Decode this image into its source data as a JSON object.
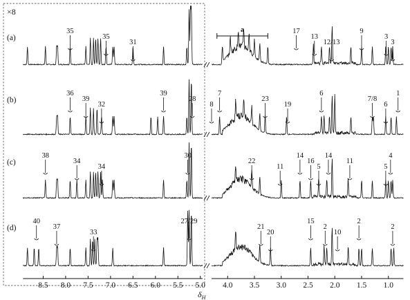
{
  "chart_data": {
    "type": "line",
    "xlabel": "δ",
    "xlabel_sub": "H",
    "zoom_label": "×8",
    "x_axis_reversed": true,
    "x_break": "between 5.0 and 4.3",
    "xticks": [
      "8.5",
      "8.0",
      "7.5",
      "7.0",
      "6.5",
      "6.0",
      "5.5",
      "5.0",
      "4.0",
      "3.5",
      "3.0",
      "2.5",
      "2.0",
      "1.5",
      "1.0"
    ],
    "xtick_values": [
      8.5,
      8.0,
      7.5,
      7.0,
      6.5,
      6.0,
      5.5,
      5.0,
      4.0,
      3.5,
      3.0,
      2.5,
      2.0,
      1.5,
      1.0
    ],
    "region_label": "a",
    "region_ppm": [
      4.2,
      3.25
    ],
    "spectra": [
      {
        "panel": "(a)",
        "peaks_ppm": [
          8.85,
          8.45,
          8.2,
          8.18,
          7.9,
          7.55,
          7.45,
          7.38,
          7.33,
          7.28,
          7.22,
          7.1,
          6.95,
          6.92,
          6.5,
          5.82,
          5.3,
          5.25,
          5.22,
          5.2,
          4.1,
          3.95,
          3.8,
          3.7,
          3.6,
          3.5,
          3.4,
          3.25,
          2.4,
          2.25,
          2.1,
          2.05,
          1.7,
          1.5,
          1.3,
          1.05,
          1.0,
          0.95,
          0.92
        ],
        "annotations": [
          {
            "text": "35",
            "ppm": 7.9
          },
          {
            "text": "35",
            "ppm": 7.1
          },
          {
            "text": "31",
            "ppm": 6.5
          },
          {
            "text": "17",
            "ppm": 2.72
          },
          {
            "text": "13",
            "ppm": 2.38
          },
          {
            "text": "12/13",
            "ppm": 2.06
          },
          {
            "text": "9",
            "ppm": 1.5
          },
          {
            "text": "3",
            "ppm": 1.04
          },
          {
            "text": "3",
            "ppm": 0.92
          }
        ]
      },
      {
        "panel": "(b)",
        "peaks_ppm": [
          8.2,
          8.18,
          7.9,
          7.55,
          7.45,
          7.38,
          7.3,
          7.2,
          6.95,
          6.92,
          6.1,
          5.95,
          5.82,
          5.3,
          5.25,
          5.2,
          4.15,
          3.85,
          3.7,
          3.55,
          3.4,
          3.3,
          2.9,
          2.25,
          2.2,
          2.1,
          2.05,
          2.0,
          1.7,
          1.3,
          1.28,
          1.05,
          0.95,
          0.85
        ],
        "annotations": [
          {
            "text": "36",
            "ppm": 7.9
          },
          {
            "text": "39",
            "ppm": 7.55
          },
          {
            "text": "32",
            "ppm": 7.2
          },
          {
            "text": "39",
            "ppm": 5.82
          },
          {
            "text": "28",
            "ppm": 5.18
          },
          {
            "text": "8",
            "ppm": 4.3
          },
          {
            "text": "7",
            "ppm": 4.15
          },
          {
            "text": "23",
            "ppm": 3.3
          },
          {
            "text": "19",
            "ppm": 2.88
          },
          {
            "text": "6",
            "ppm": 2.25
          },
          {
            "text": "7/8",
            "ppm": 1.3
          },
          {
            "text": "6",
            "ppm": 1.05
          },
          {
            "text": "1",
            "ppm": 0.82
          }
        ]
      },
      {
        "panel": "(c)",
        "peaks_ppm": [
          8.45,
          8.2,
          8.18,
          7.9,
          7.75,
          7.55,
          7.45,
          7.38,
          7.33,
          7.28,
          7.22,
          7.18,
          6.95,
          6.92,
          5.82,
          5.3,
          5.25,
          5.2,
          3.85,
          3.55,
          3.4,
          3.0,
          2.65,
          2.45,
          2.3,
          2.15,
          2.05,
          1.75,
          1.5,
          1.3,
          1.05,
          1.0,
          0.95,
          0.92
        ],
        "annotations": [
          {
            "text": "38",
            "ppm": 8.45
          },
          {
            "text": "34",
            "ppm": 7.75
          },
          {
            "text": "34",
            "ppm": 7.2
          },
          {
            "text": "30",
            "ppm": 5.28
          },
          {
            "text": "22",
            "ppm": 3.55
          },
          {
            "text": "11",
            "ppm": 3.02
          },
          {
            "text": "14",
            "ppm": 2.65
          },
          {
            "text": "16",
            "ppm": 2.45
          },
          {
            "text": "5",
            "ppm": 2.3
          },
          {
            "text": "14",
            "ppm": 2.12
          },
          {
            "text": "11",
            "ppm": 1.72
          },
          {
            "text": "5",
            "ppm": 1.05
          },
          {
            "text": "4",
            "ppm": 0.96
          }
        ]
      },
      {
        "panel": "(d)",
        "peaks_ppm": [
          8.85,
          8.7,
          8.6,
          8.2,
          8.18,
          7.9,
          7.55,
          7.45,
          7.4,
          7.35,
          7.3,
          7.28,
          6.95,
          5.82,
          5.28,
          5.25,
          5.2,
          3.85,
          3.4,
          3.2,
          2.45,
          2.2,
          2.15,
          2.05,
          1.75,
          1.55,
          1.5,
          1.3,
          0.95,
          0.9
        ],
        "annotations": [
          {
            "text": "40",
            "ppm": 8.65
          },
          {
            "text": "37",
            "ppm": 8.2
          },
          {
            "text": "33",
            "ppm": 7.38
          },
          {
            "text": "27/29",
            "ppm": 5.25
          },
          {
            "text": "21",
            "ppm": 3.38
          },
          {
            "text": "20",
            "ppm": 3.2
          },
          {
            "text": "15",
            "ppm": 2.45
          },
          {
            "text": "2",
            "ppm": 2.18
          },
          {
            "text": "10",
            "ppm": 1.95
          },
          {
            "text": "2",
            "ppm": 1.55
          },
          {
            "text": "2",
            "ppm": 0.92
          }
        ]
      }
    ]
  }
}
